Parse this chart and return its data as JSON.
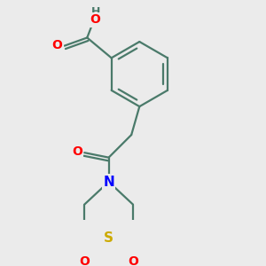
{
  "bg_color": "#ebebeb",
  "bond_color": "#4a7a6a",
  "bond_width": 1.6,
  "atom_colors": {
    "O": "#ff0000",
    "N": "#0000ff",
    "S": "#ccaa00",
    "H": "#4a7a6a",
    "C": "#4a7a6a"
  },
  "font_size_atom": 10,
  "font_size_H": 9
}
